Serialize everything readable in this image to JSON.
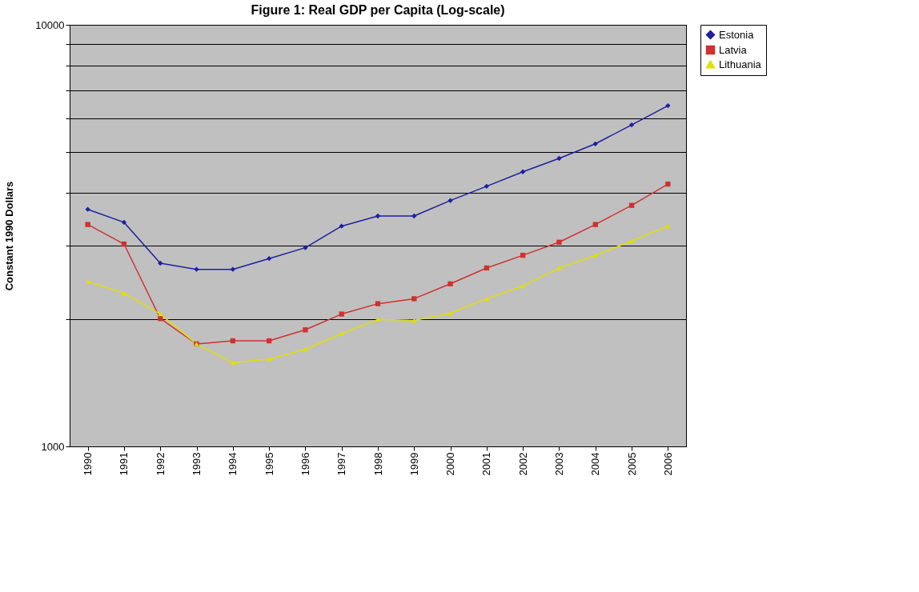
{
  "chart_data": {
    "type": "line",
    "title": "Figure 1: Real GDP per Capita (Log-scale)",
    "ylabel": "Constant 1990 Dollars",
    "categories": [
      "1990",
      "1991",
      "1992",
      "1993",
      "1994",
      "1995",
      "1996",
      "1997",
      "1998",
      "1999",
      "2000",
      "2001",
      "2002",
      "2003",
      "2004",
      "2005",
      "2006"
    ],
    "series": [
      {
        "name": "Estonia",
        "color": "#1f1f9f",
        "marker": "diamond",
        "values": [
          3650,
          3400,
          2720,
          2630,
          2630,
          2790,
          2960,
          3330,
          3520,
          3520,
          3830,
          4140,
          4480,
          4820,
          5220,
          5790,
          6430
        ]
      },
      {
        "name": "Latvia",
        "color": "#d03030",
        "marker": "square",
        "values": [
          3360,
          3020,
          2010,
          1750,
          1780,
          1780,
          1890,
          2060,
          2180,
          2240,
          2430,
          2650,
          2840,
          3050,
          3360,
          3730,
          4190
        ]
      },
      {
        "name": "Lithuania",
        "color": "#e0e000",
        "marker": "triangle",
        "values": [
          2460,
          2310,
          2060,
          1750,
          1580,
          1610,
          1700,
          1850,
          2000,
          1990,
          2070,
          2240,
          2400,
          2650,
          2840,
          3070,
          3330
        ]
      }
    ],
    "log": "y",
    "ylim": [
      1000,
      10000
    ],
    "yticks": [
      1000,
      {
        "value": 2000,
        "label": null
      },
      {
        "value": 3000,
        "label": null
      },
      {
        "value": 4000,
        "label": null
      },
      {
        "value": 5000,
        "label": null
      },
      {
        "value": 6000,
        "label": null
      },
      {
        "value": 7000,
        "label": null
      },
      {
        "value": 8000,
        "label": null
      },
      {
        "value": 9000,
        "label": null
      },
      10000
    ],
    "grid": "y",
    "legend": "right"
  }
}
